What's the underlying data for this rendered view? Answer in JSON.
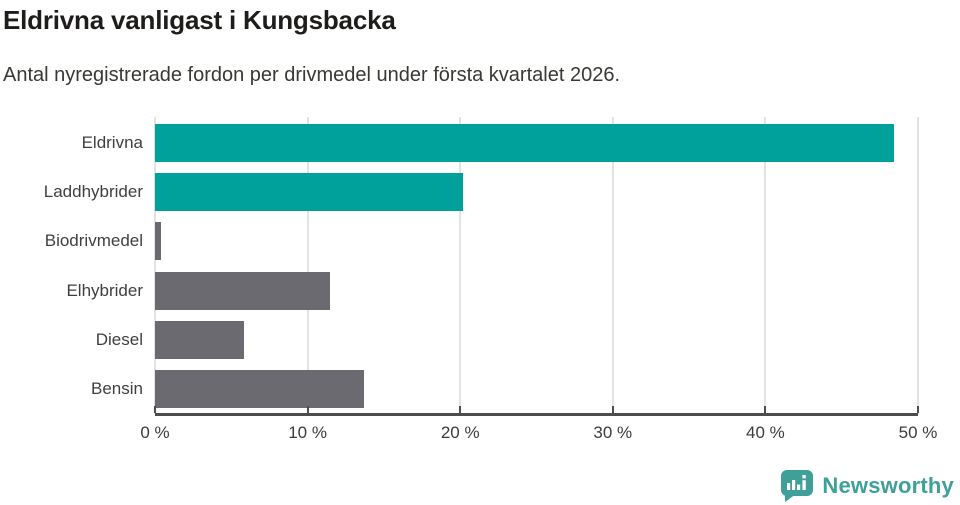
{
  "chart": {
    "title": "Eldrivna vanligast i Kungsbacka",
    "subtitle": "Antal nyregistrerade fordon per drivmedel under första kvartalet 2026."
  },
  "chart_data": {
    "type": "bar",
    "orientation": "horizontal",
    "categories": [
      "Eldrivna",
      "Laddhybrider",
      "Biodrivmedel",
      "Elhybrider",
      "Diesel",
      "Bensin"
    ],
    "values": [
      48.4,
      20.2,
      0.4,
      11.5,
      5.8,
      13.7
    ],
    "unit": "%",
    "xlim": [
      0,
      50
    ],
    "xticks": [
      0,
      10,
      20,
      30,
      40,
      50
    ],
    "xtick_labels": [
      "0 %",
      "10 %",
      "20 %",
      "30 %",
      "40 %",
      "50 %"
    ],
    "grid": true,
    "legend": "none",
    "bar_colors": [
      "#00a19a",
      "#00a19a",
      "#6b6a70",
      "#6b6a70",
      "#6b6a70",
      "#6b6a70"
    ],
    "highlight_color": "#00a19a",
    "default_color": "#6b6a70",
    "gridline_color": "#e3e3e3",
    "axis_color": "#4d4d4d"
  },
  "footer": {
    "brand": "Newsworthy",
    "logo_icon": "newsworthy-speech-bubble-bar-chart-icon",
    "brand_color": "#3f9f99"
  }
}
